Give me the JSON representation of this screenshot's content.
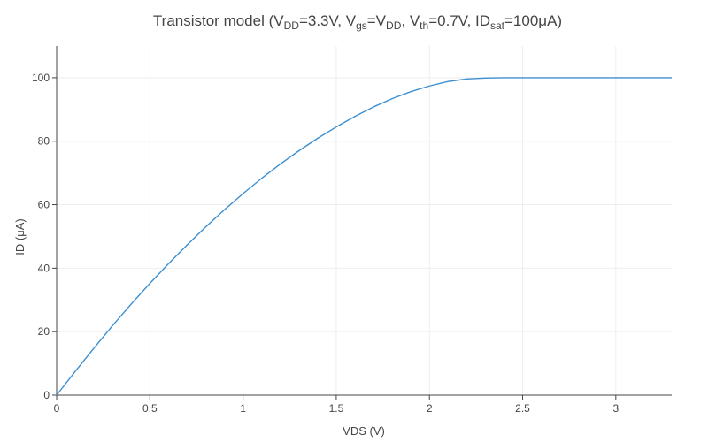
{
  "chart_data": {
    "type": "line",
    "title": {
      "parts": [
        {
          "text": "Transistor model (V",
          "sub": false
        },
        {
          "text": "DD",
          "sub": true
        },
        {
          "text": "=3.3V, V",
          "sub": false
        },
        {
          "text": "gs",
          "sub": true
        },
        {
          "text": "=V",
          "sub": false
        },
        {
          "text": "DD",
          "sub": true
        },
        {
          "text": ", V",
          "sub": false
        },
        {
          "text": "th",
          "sub": true
        },
        {
          "text": "=0.7V, ID",
          "sub": false
        },
        {
          "text": "sat",
          "sub": true
        },
        {
          "text": "=100μA)",
          "sub": false
        }
      ]
    },
    "xlabel": "VDS (V)",
    "ylabel": "ID (μA)",
    "xlim": [
      0,
      3.3
    ],
    "ylim": [
      0,
      110
    ],
    "grid": true,
    "x_ticks": [
      0,
      0.5,
      1,
      1.5,
      2,
      2.5,
      3
    ],
    "x_tick_labels": [
      "0",
      "0.5",
      "1",
      "1.5",
      "2",
      "2.5",
      "3"
    ],
    "y_ticks": [
      0,
      20,
      40,
      60,
      80,
      100
    ],
    "y_tick_labels": [
      "0",
      "20",
      "40",
      "60",
      "80",
      "100"
    ],
    "line_color": "#3d8fd1",
    "series": [
      {
        "x": [
          0,
          0.1,
          0.2,
          0.3,
          0.4,
          0.5,
          0.6,
          0.7,
          0.8,
          0.9,
          1.0,
          1.1,
          1.2,
          1.3,
          1.4,
          1.5,
          1.6,
          1.7,
          1.8,
          1.9,
          2.0,
          2.1,
          2.2,
          2.3,
          2.4,
          2.5,
          2.6,
          2.7,
          2.8,
          2.9,
          3.0,
          3.1,
          3.2,
          3.3
        ],
        "y": [
          0,
          7.5,
          14.8,
          21.9,
          28.7,
          35.2,
          41.4,
          47.3,
          53.0,
          58.4,
          63.5,
          68.3,
          72.8,
          77.0,
          80.9,
          84.5,
          87.8,
          90.8,
          93.4,
          95.6,
          97.4,
          98.8,
          99.6,
          99.9,
          100,
          100,
          100,
          100,
          100,
          100,
          100,
          100,
          100,
          100
        ]
      }
    ]
  }
}
